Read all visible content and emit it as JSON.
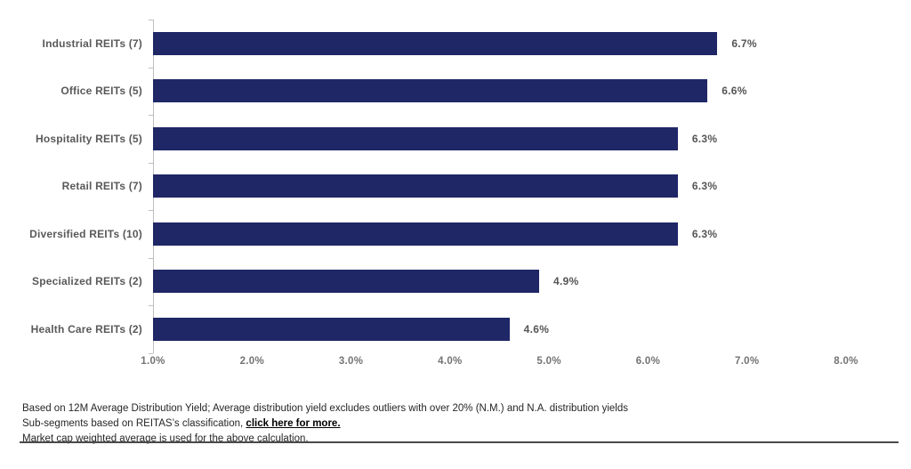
{
  "chart_data": {
    "type": "bar",
    "orientation": "horizontal",
    "categories": [
      "Industrial REITs (7)",
      "Office REITs (5)",
      "Hospitality REITs (5)",
      "Retail REITs (7)",
      "Diversified REITs (10)",
      "Specialized REITs (2)",
      "Health Care REITs (2)"
    ],
    "values": [
      6.7,
      6.6,
      6.3,
      6.3,
      6.3,
      4.9,
      4.6
    ],
    "value_labels": [
      "6.7%",
      "6.6%",
      "6.3%",
      "6.3%",
      "6.3%",
      "4.9%",
      "4.6%"
    ],
    "x_tick_labels": [
      "1.0%",
      "2.0%",
      "3.0%",
      "4.0%",
      "5.0%",
      "6.0%",
      "7.0%",
      "8.0%"
    ],
    "xlim": [
      1.0,
      8.0
    ],
    "title": "",
    "xlabel": "",
    "ylabel": "",
    "grid": false,
    "legend": false,
    "bar_color": "#1F2766",
    "axis_color": "#bfbfbf"
  },
  "footer": {
    "line1": "Based on 12M Average Distribution Yield; Average distribution yield excludes outliers with over 20% (N.M.) and N.A. distribution yields",
    "line2_prefix": "Sub-segments based on REITAS’s classification, ",
    "line2_link": "click here for more.",
    "line3": "Market cap weighted average is used for the above calculation."
  }
}
